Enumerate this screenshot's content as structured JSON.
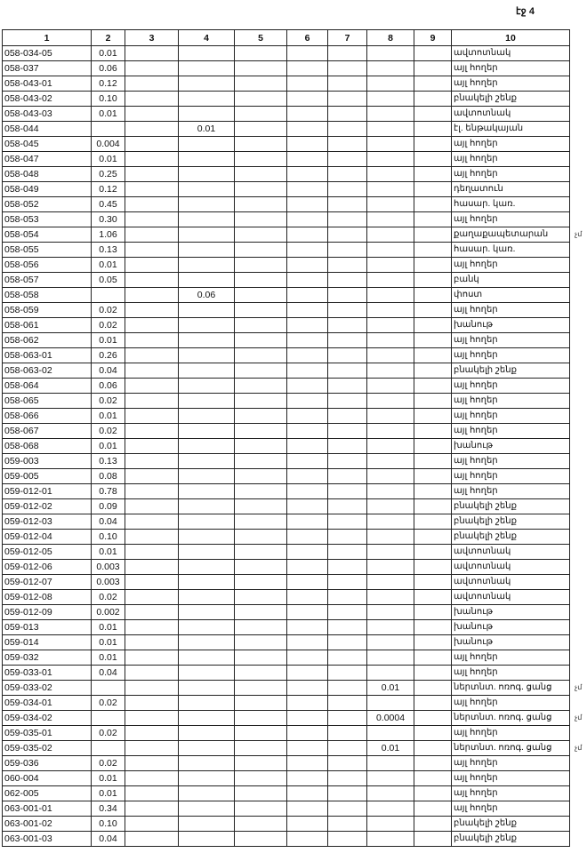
{
  "page_label": "էջ 4",
  "columns": [
    "1",
    "2",
    "3",
    "4",
    "5",
    "6",
    "7",
    "8",
    "9",
    "10"
  ],
  "rows": [
    {
      "c1": "058-034-05",
      "c2": "0.01",
      "c4": "",
      "c8": "",
      "c10": "ավտոտնակ",
      "mark": ""
    },
    {
      "c1": "058-037",
      "c2": "0.06",
      "c4": "",
      "c8": "",
      "c10": "այլ հողեր",
      "mark": ""
    },
    {
      "c1": "058-043-01",
      "c2": "0.12",
      "c4": "",
      "c8": "",
      "c10": "այլ հողեր",
      "mark": ""
    },
    {
      "c1": "058-043-02",
      "c2": "0.10",
      "c4": "",
      "c8": "",
      "c10": "բնակելի շենք",
      "mark": ""
    },
    {
      "c1": "058-043-03",
      "c2": "0.01",
      "c4": "",
      "c8": "",
      "c10": "ավտոտնակ",
      "mark": ""
    },
    {
      "c1": "058-044",
      "c2": "",
      "c4": "0.01",
      "c8": "",
      "c10": "էլ. ենթակայան",
      "mark": ""
    },
    {
      "c1": "058-045",
      "c2": "0.004",
      "c4": "",
      "c8": "",
      "c10": "այլ հողեր",
      "mark": ""
    },
    {
      "c1": "058-047",
      "c2": "0.01",
      "c4": "",
      "c8": "",
      "c10": "այլ հողեր",
      "mark": ""
    },
    {
      "c1": "058-048",
      "c2": "0.25",
      "c4": "",
      "c8": "",
      "c10": "այլ հողեր",
      "mark": ""
    },
    {
      "c1": "058-049",
      "c2": "0.12",
      "c4": "",
      "c8": "",
      "c10": "դեղատուն",
      "mark": ""
    },
    {
      "c1": "058-052",
      "c2": "0.45",
      "c4": "",
      "c8": "",
      "c10": "հասար. կառ.",
      "mark": ""
    },
    {
      "c1": "058-053",
      "c2": "0.30",
      "c4": "",
      "c8": "",
      "c10": "այլ հողեր",
      "mark": ""
    },
    {
      "c1": "058-054",
      "c2": "1.06",
      "c4": "",
      "c8": "",
      "c10": "քաղաքապետարան",
      "mark": "չմ"
    },
    {
      "c1": "058-055",
      "c2": "0.13",
      "c4": "",
      "c8": "",
      "c10": "հասար. կառ.",
      "mark": ""
    },
    {
      "c1": "058-056",
      "c2": "0.01",
      "c4": "",
      "c8": "",
      "c10": "այլ հողեր",
      "mark": ""
    },
    {
      "c1": "058-057",
      "c2": "0.05",
      "c4": "",
      "c8": "",
      "c10": "բանկ",
      "mark": ""
    },
    {
      "c1": "058-058",
      "c2": "",
      "c4": "0.06",
      "c8": "",
      "c10": "փոստ",
      "mark": ""
    },
    {
      "c1": "058-059",
      "c2": "0.02",
      "c4": "",
      "c8": "",
      "c10": "այլ հողեր",
      "mark": ""
    },
    {
      "c1": "058-061",
      "c2": "0.02",
      "c4": "",
      "c8": "",
      "c10": "խանութ",
      "mark": ""
    },
    {
      "c1": "058-062",
      "c2": "0.01",
      "c4": "",
      "c8": "",
      "c10": "այլ հողեր",
      "mark": ""
    },
    {
      "c1": "058-063-01",
      "c2": "0.26",
      "c4": "",
      "c8": "",
      "c10": "այլ հողեր",
      "mark": ""
    },
    {
      "c1": "058-063-02",
      "c2": "0.04",
      "c4": "",
      "c8": "",
      "c10": "բնակելի շենք",
      "mark": ""
    },
    {
      "c1": "058-064",
      "c2": "0.06",
      "c4": "",
      "c8": "",
      "c10": "այլ հողեր",
      "mark": ""
    },
    {
      "c1": "058-065",
      "c2": "0.02",
      "c4": "",
      "c8": "",
      "c10": "այլ հողեր",
      "mark": ""
    },
    {
      "c1": "058-066",
      "c2": "0.01",
      "c4": "",
      "c8": "",
      "c10": "այլ հողեր",
      "mark": ""
    },
    {
      "c1": "058-067",
      "c2": "0.02",
      "c4": "",
      "c8": "",
      "c10": "այլ հողեր",
      "mark": ""
    },
    {
      "c1": "058-068",
      "c2": "0.01",
      "c4": "",
      "c8": "",
      "c10": "խանութ",
      "mark": ""
    },
    {
      "c1": "059-003",
      "c2": "0.13",
      "c4": "",
      "c8": "",
      "c10": "այլ հողեր",
      "mark": ""
    },
    {
      "c1": "059-005",
      "c2": "0.08",
      "c4": "",
      "c8": "",
      "c10": "այլ հողեր",
      "mark": ""
    },
    {
      "c1": "059-012-01",
      "c2": "0.78",
      "c4": "",
      "c8": "",
      "c10": "այլ հողեր",
      "mark": ""
    },
    {
      "c1": "059-012-02",
      "c2": "0.09",
      "c4": "",
      "c8": "",
      "c10": "բնակելի շենք",
      "mark": ""
    },
    {
      "c1": "059-012-03",
      "c2": "0.04",
      "c4": "",
      "c8": "",
      "c10": "բնակելի շենք",
      "mark": ""
    },
    {
      "c1": "059-012-04",
      "c2": "0.10",
      "c4": "",
      "c8": "",
      "c10": "բնակելի շենք",
      "mark": ""
    },
    {
      "c1": "059-012-05",
      "c2": "0.01",
      "c4": "",
      "c8": "",
      "c10": "ավտոտնակ",
      "mark": ""
    },
    {
      "c1": "059-012-06",
      "c2": "0.003",
      "c4": "",
      "c8": "",
      "c10": "ավտոտնակ",
      "mark": ""
    },
    {
      "c1": "059-012-07",
      "c2": "0.003",
      "c4": "",
      "c8": "",
      "c10": "ավտոտնակ",
      "mark": ""
    },
    {
      "c1": "059-012-08",
      "c2": "0.02",
      "c4": "",
      "c8": "",
      "c10": "ավտոտնակ",
      "mark": ""
    },
    {
      "c1": "059-012-09",
      "c2": "0.002",
      "c4": "",
      "c8": "",
      "c10": "խանութ",
      "mark": ""
    },
    {
      "c1": "059-013",
      "c2": "0.01",
      "c4": "",
      "c8": "",
      "c10": "խանութ",
      "mark": ""
    },
    {
      "c1": "059-014",
      "c2": "0.01",
      "c4": "",
      "c8": "",
      "c10": "խանութ",
      "mark": ""
    },
    {
      "c1": "059-032",
      "c2": "0.01",
      "c4": "",
      "c8": "",
      "c10": "այլ հողեր",
      "mark": ""
    },
    {
      "c1": "059-033-01",
      "c2": "0.04",
      "c4": "",
      "c8": "",
      "c10": "այլ հողեր",
      "mark": ""
    },
    {
      "c1": "059-033-02",
      "c2": "",
      "c4": "",
      "c8": "0.01",
      "c10": "ներտնտ. ոռոգ. ցանց",
      "mark": "չմ"
    },
    {
      "c1": "059-034-01",
      "c2": "0.02",
      "c4": "",
      "c8": "",
      "c10": "այլ հողեր",
      "mark": ""
    },
    {
      "c1": "059-034-02",
      "c2": "",
      "c4": "",
      "c8": "0.0004",
      "c10": "ներտնտ. ոռոգ. ցանց",
      "mark": "չմ"
    },
    {
      "c1": "059-035-01",
      "c2": "0.02",
      "c4": "",
      "c8": "",
      "c10": "այլ հողեր",
      "mark": ""
    },
    {
      "c1": "059-035-02",
      "c2": "",
      "c4": "",
      "c8": "0.01",
      "c10": "ներտնտ. ոռոգ. ցանց",
      "mark": "չմ"
    },
    {
      "c1": "059-036",
      "c2": "0.02",
      "c4": "",
      "c8": "",
      "c10": "այլ հողեր",
      "mark": ""
    },
    {
      "c1": "060-004",
      "c2": "0.01",
      "c4": "",
      "c8": "",
      "c10": "այլ հողեր",
      "mark": ""
    },
    {
      "c1": "062-005",
      "c2": "0.01",
      "c4": "",
      "c8": "",
      "c10": "այլ հողեր",
      "mark": ""
    },
    {
      "c1": "063-001-01",
      "c2": "0.34",
      "c4": "",
      "c8": "",
      "c10": "այլ հողեր",
      "mark": ""
    },
    {
      "c1": "063-001-02",
      "c2": "0.10",
      "c4": "",
      "c8": "",
      "c10": "բնակելի շենք",
      "mark": ""
    },
    {
      "c1": "063-001-03",
      "c2": "0.04",
      "c4": "",
      "c8": "",
      "c10": "բնակելի շենք",
      "mark": ""
    }
  ]
}
